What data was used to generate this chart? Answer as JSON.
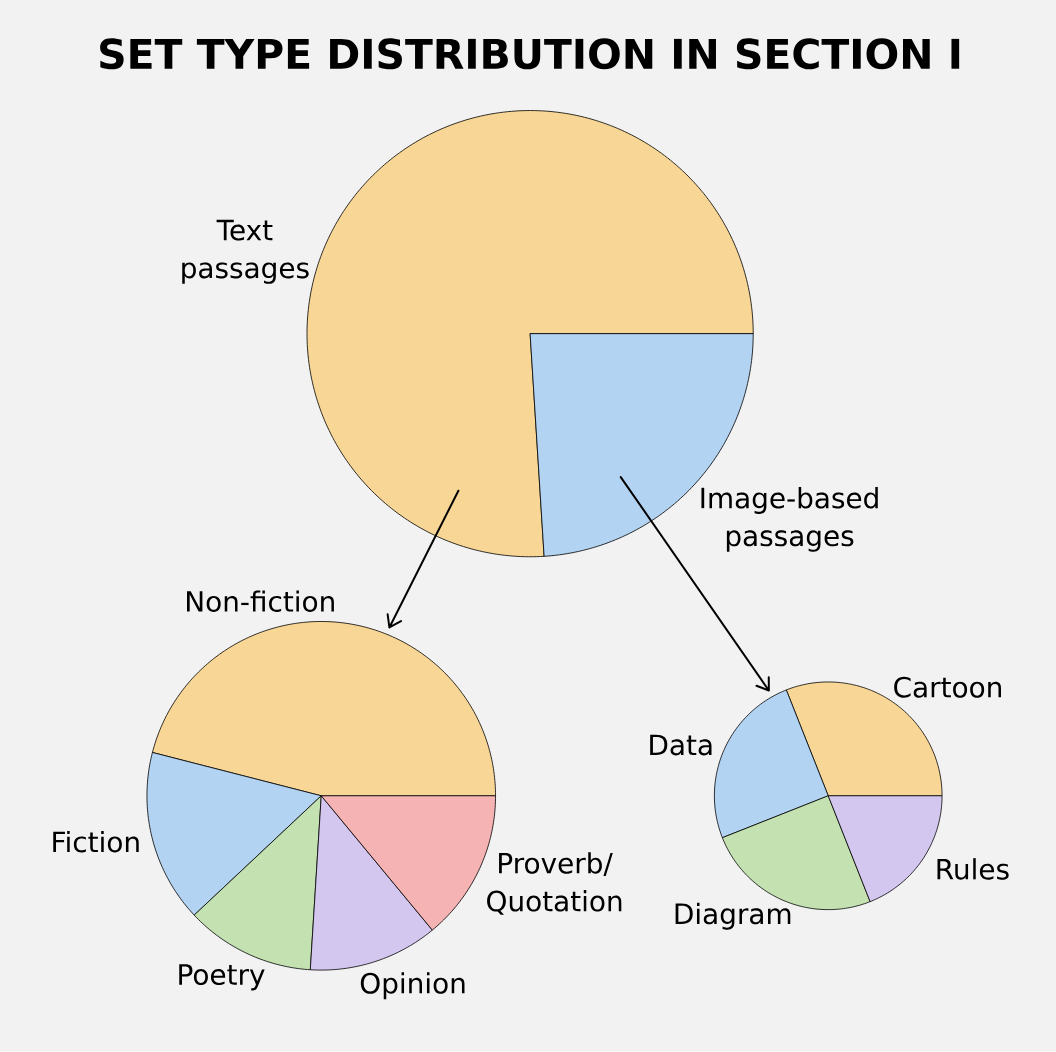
{
  "chart_data": [
    {
      "type": "pie",
      "title": "SET TYPE DISTRIBUTION IN SECTION I",
      "categories": [
        "Text passages",
        "Image-based passages"
      ],
      "values": [
        76,
        24
      ],
      "colors": [
        "#f7d696",
        "#b3d3f2"
      ]
    },
    {
      "type": "pie",
      "categories": [
        "Non-fiction",
        "Fiction",
        "Poetry",
        "Opinion",
        "Proverb/Quotation"
      ],
      "values": [
        46,
        16,
        12,
        12,
        14
      ],
      "colors": [
        "#f7d696",
        "#b3d3f2",
        "#c4e1b2",
        "#d4c7ef",
        "#f6b3b3"
      ]
    },
    {
      "type": "pie",
      "categories": [
        "Cartoon",
        "Data",
        "Diagram",
        "Rules"
      ],
      "values": [
        31,
        25,
        25,
        19
      ],
      "colors": [
        "#f7d696",
        "#b3d3f2",
        "#c4e1b2",
        "#d4c7ef"
      ]
    }
  ]
}
